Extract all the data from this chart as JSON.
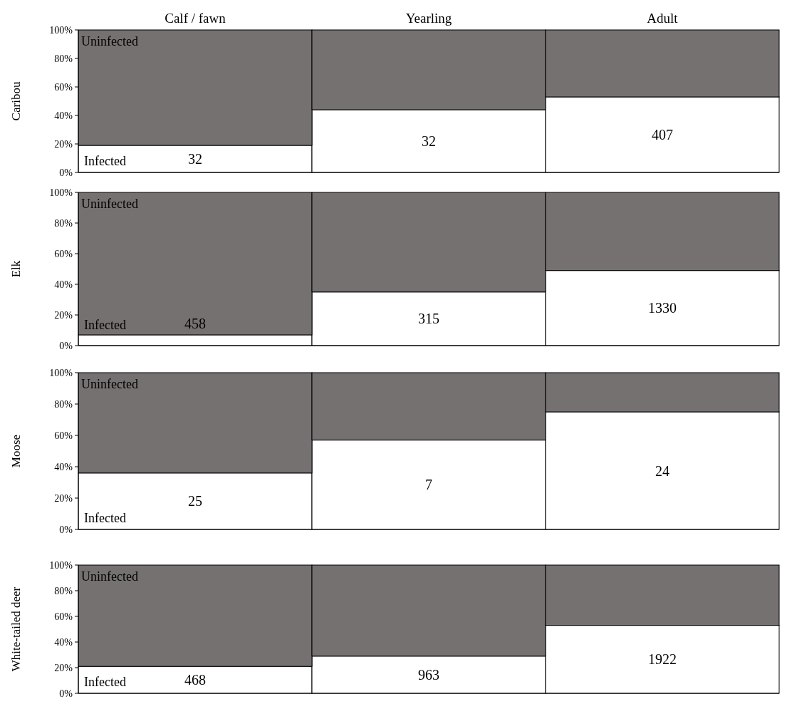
{
  "chart_data": [
    {
      "type": "bar",
      "stacked": true,
      "ylabel": "Caribou",
      "categories": [
        "Calf / fawn",
        "Yearling",
        "Adult"
      ],
      "series": [
        {
          "name": "Infected",
          "color": "#ffffff",
          "values": [
            19,
            44,
            53
          ]
        },
        {
          "name": "Uninfected",
          "color": "#747170",
          "values": [
            81,
            56,
            47
          ]
        }
      ],
      "ylim": [
        0,
        100
      ],
      "yticks": [
        {
          "value": 0,
          "label": "0%"
        },
        {
          "value": 20,
          "label": "20%"
        },
        {
          "value": 40,
          "label": "40%"
        },
        {
          "value": 60,
          "label": "60%"
        },
        {
          "value": 80,
          "label": "80%"
        },
        {
          "value": 100,
          "label": "100%"
        }
      ],
      "annotations": [
        "32",
        "32",
        "407"
      ],
      "grid": false,
      "legend": false
    },
    {
      "type": "bar",
      "stacked": true,
      "ylabel": "Elk",
      "categories": [
        null,
        null,
        null
      ],
      "series": [
        {
          "name": "Infected",
          "color": "#ffffff",
          "values": [
            7,
            35,
            49
          ]
        },
        {
          "name": "Uninfected",
          "color": "#747170",
          "values": [
            93,
            65,
            51
          ]
        }
      ],
      "ylim": [
        0,
        100
      ],
      "yticks": [
        {
          "value": 0,
          "label": "0%"
        },
        {
          "value": 20,
          "label": "20%"
        },
        {
          "value": 40,
          "label": "40%"
        },
        {
          "value": 60,
          "label": "60%"
        },
        {
          "value": 80,
          "label": "80%"
        },
        {
          "value": 100,
          "label": "100%"
        }
      ],
      "annotations": [
        "458",
        "315",
        "1330"
      ],
      "grid": false,
      "legend": false,
      "tick_labels": "y"
    },
    {
      "type": "bar",
      "stacked": true,
      "ylabel": "Moose",
      "categories": [
        null,
        null,
        null
      ],
      "series": [
        {
          "name": "Infected",
          "color": "#ffffff",
          "values": [
            36,
            57,
            75
          ]
        },
        {
          "name": "Uninfected",
          "color": "#747170",
          "values": [
            64,
            43,
            25
          ]
        }
      ],
      "ylim": [
        0,
        100
      ],
      "yticks": [
        {
          "value": 0,
          "label": "0%"
        },
        {
          "value": 20,
          "label": "20%"
        },
        {
          "value": 40,
          "label": "40%"
        },
        {
          "value": 60,
          "label": "60%"
        },
        {
          "value": 80,
          "label": "80%"
        },
        {
          "value": 100,
          "label": "100%"
        }
      ],
      "annotations": [
        "25",
        "7",
        "24"
      ],
      "grid": false,
      "legend": false,
      "tick_labels": "y"
    },
    {
      "type": "bar",
      "stacked": true,
      "ylabel": "White-tailed deer",
      "categories": [
        null,
        null,
        null
      ],
      "series": [
        {
          "name": "Infected",
          "color": "#ffffff",
          "values": [
            21,
            29,
            53
          ]
        },
        {
          "name": "Uninfected",
          "color": "#747170",
          "values": [
            79,
            71,
            47
          ]
        }
      ],
      "ylim": [
        0,
        100
      ],
      "yticks": [
        {
          "value": 0,
          "label": "0%"
        },
        {
          "value": 20,
          "label": "20%"
        },
        {
          "value": 40,
          "label": "40%"
        },
        {
          "value": 60,
          "label": "60%"
        },
        {
          "value": 80,
          "label": "80%"
        },
        {
          "value": 100,
          "label": "100%"
        }
      ],
      "annotations": [
        "468",
        "963",
        "1922"
      ],
      "grid": false,
      "legend": false,
      "tick_labels": "y"
    }
  ]
}
